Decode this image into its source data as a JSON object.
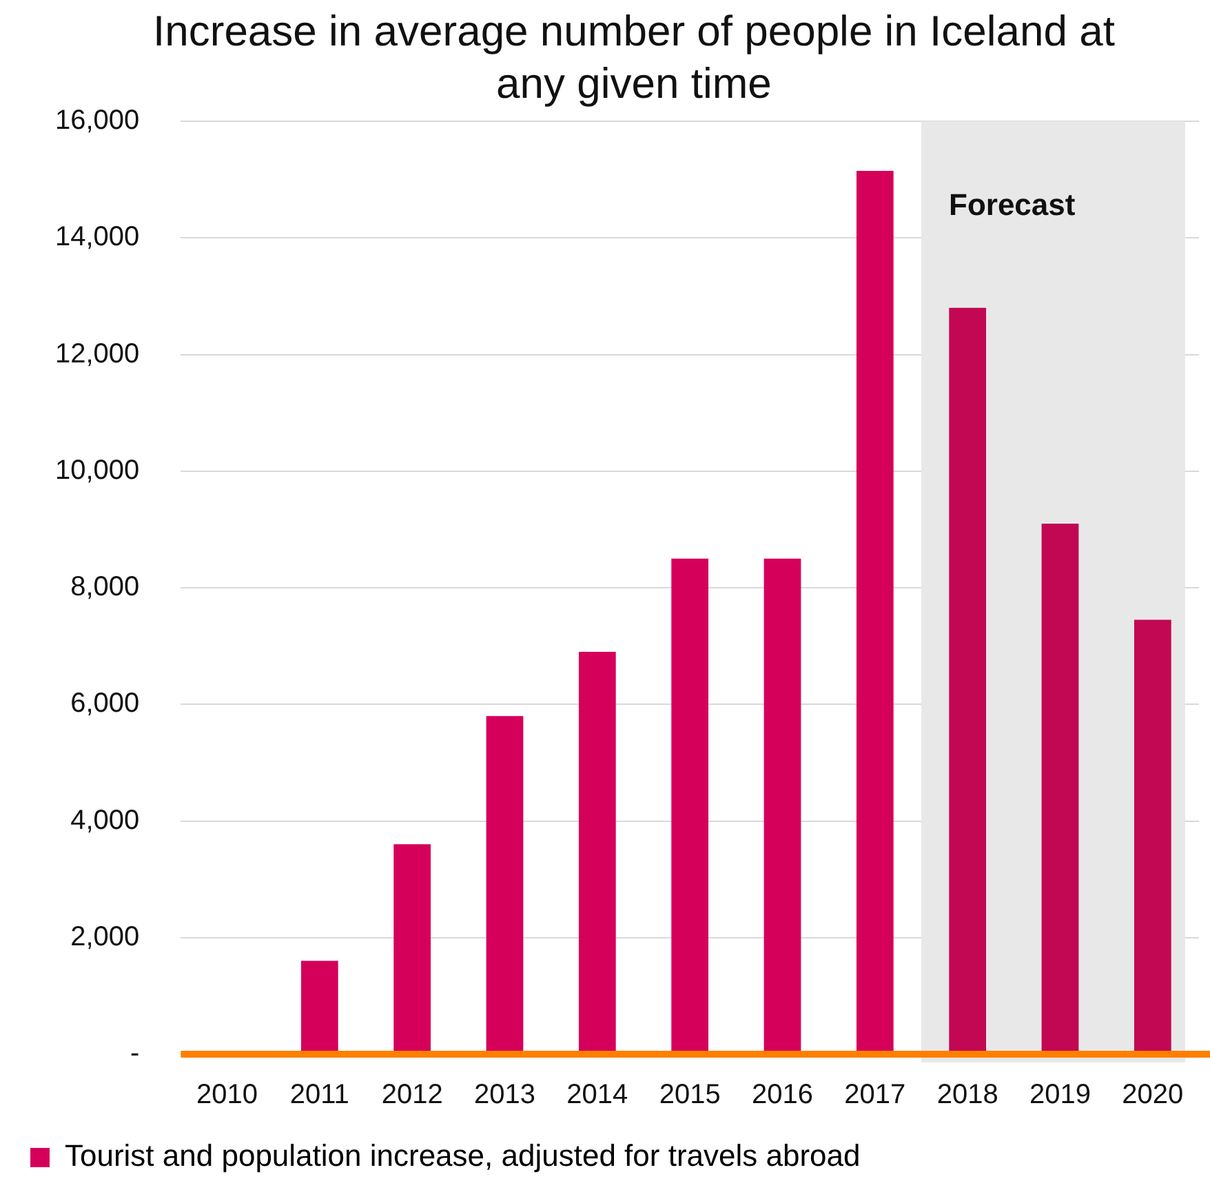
{
  "chart_data": {
    "type": "bar",
    "title": "Increase in average number of people in Iceland at any given time",
    "categories": [
      "2010",
      "2011",
      "2012",
      "2013",
      "2014",
      "2015",
      "2016",
      "2017",
      "2018",
      "2019",
      "2020"
    ],
    "series": [
      {
        "name": "Tourist and population increase, adjusted for travels abroad",
        "color": "#d5005a",
        "colors": [
          "#d5005a",
          "#d5005a",
          "#d5005a",
          "#d5005a",
          "#d5005a",
          "#d5005a",
          "#d5005a",
          "#d5005a",
          "#c20852",
          "#c20852",
          "#c20852"
        ],
        "values": [
          0,
          1600,
          3600,
          5800,
          6900,
          8500,
          8500,
          15150,
          12800,
          9100,
          7450
        ]
      }
    ],
    "ylim": [
      0,
      16000
    ],
    "yticks": [
      {
        "value": 0,
        "label": "-"
      },
      {
        "value": 2000,
        "label": "2,000"
      },
      {
        "value": 4000,
        "label": "4,000"
      },
      {
        "value": 6000,
        "label": "6,000"
      },
      {
        "value": 8000,
        "label": "8,000"
      },
      {
        "value": 10000,
        "label": "10,000"
      },
      {
        "value": 12000,
        "label": "12,000"
      },
      {
        "value": 14000,
        "label": "14,000"
      },
      {
        "value": 16000,
        "label": "16,000"
      }
    ],
    "bands": [
      {
        "axis": "x",
        "from": "2018",
        "to": "2020",
        "label": "Forecast",
        "color": "#e8e8e8"
      }
    ],
    "grid": "y",
    "legend": "bottom left"
  }
}
